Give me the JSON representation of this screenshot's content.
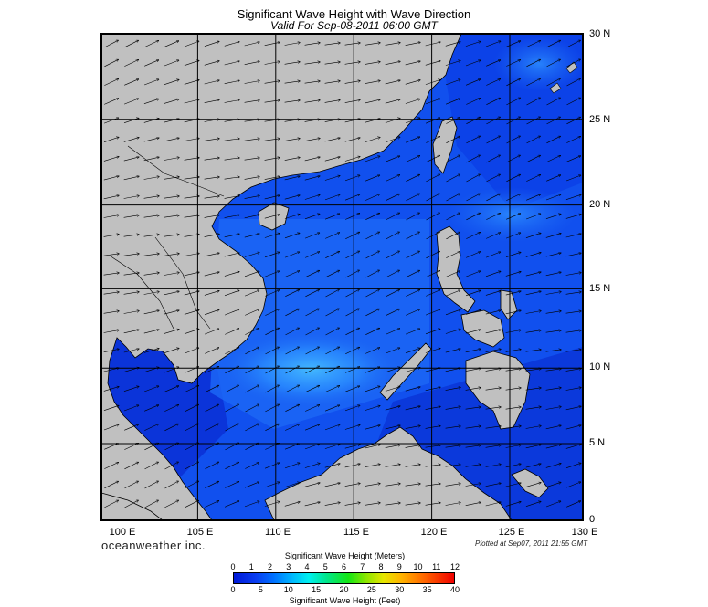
{
  "title": "Significant Wave Height with Wave Direction",
  "subtitle": "Valid For Sep-08-2011 06:00 GMT",
  "lat_labels": [
    "30 N",
    "25 N",
    "20 N",
    "15 N",
    "10 N",
    "5 N",
    "0"
  ],
  "lon_labels": [
    "100 E",
    "105 E",
    "110 E",
    "115 E",
    "120 E",
    "125 E",
    "130 E"
  ],
  "brand": "oceanweather inc.",
  "plotted": "Plotted at Sep07, 2011 21:55 GMT",
  "colorbar": {
    "meters_title": "Significant Wave Height (Meters)",
    "meters_ticks": [
      "0",
      "1",
      "2",
      "3",
      "4",
      "5",
      "6",
      "7",
      "8",
      "9",
      "10",
      "11",
      "12"
    ],
    "feet_ticks": [
      "0",
      "5",
      "10",
      "15",
      "20",
      "25",
      "30",
      "35",
      "40"
    ],
    "feet_title": "Significant Wave Height (Feet)"
  },
  "colors": {
    "land": "#c0c0c0",
    "sea_deep": "#0a3ce6",
    "sea_mid": "#1f6ef5",
    "sea_light": "#37a6ff"
  },
  "map_extent": {
    "lon_min": 100,
    "lon_max": 130,
    "lat_min": 0,
    "lat_max": 30
  },
  "predominant_wave_direction": "toward north-east"
}
